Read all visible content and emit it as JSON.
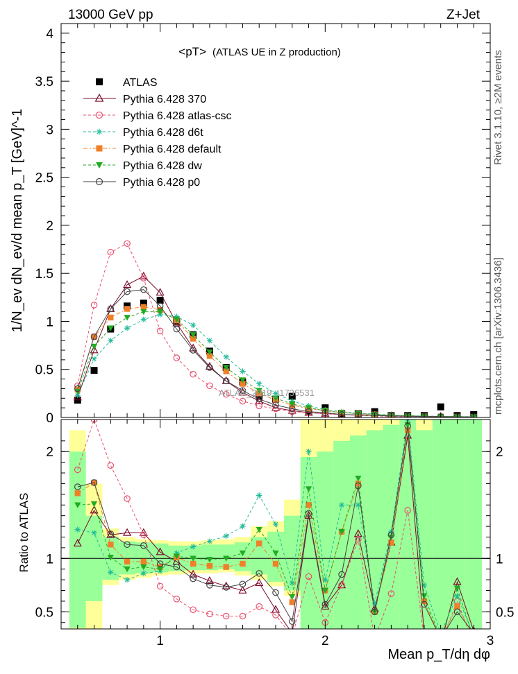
{
  "header": {
    "energy_label": "13000 GeV pp",
    "process_label": "Z+Jet"
  },
  "side_labels": {
    "rivet": "Rivet 3.1.10, ≥2M events",
    "mcplots": "mcplots.cern.ch [arXiv:1306.3436]"
  },
  "watermark": "ATLAS_2019_I1736531",
  "chart_data": [
    {
      "type": "line",
      "panel": "main",
      "title": "<pT>",
      "subtitle": "(ATLAS UE in Z production)",
      "ylabel": "1/N_ev dN_ev/d mean p_T [GeV]^-1",
      "xlim": [
        0.4,
        3.0
      ],
      "ylim": [
        0,
        4.1
      ],
      "yticks": [
        0,
        0.5,
        1,
        1.5,
        2,
        2.5,
        3,
        3.5,
        4
      ],
      "ytick_labels": [
        "0",
        "0.5",
        "1",
        "1.5",
        "2",
        "2.5",
        "3",
        "3.5",
        "4"
      ],
      "legend_position": "top-left",
      "x": [
        0.5,
        0.6,
        0.7,
        0.8,
        0.9,
        1.0,
        1.1,
        1.2,
        1.3,
        1.4,
        1.5,
        1.6,
        1.7,
        1.8,
        1.9,
        2.0,
        2.1,
        2.2,
        2.3,
        2.4,
        2.5,
        2.6,
        2.7,
        2.8,
        2.9
      ],
      "series": [
        {
          "name": "ATLAS",
          "color": "#000000",
          "marker": "square",
          "line": "none",
          "values": [
            0.18,
            0.49,
            0.92,
            1.16,
            1.19,
            1.22,
            1.0,
            0.86,
            0.69,
            0.52,
            0.37,
            0.22,
            0.19,
            0.22,
            0.06,
            0.1,
            0.04,
            0.04,
            0.06,
            0.02,
            0.02,
            0.02,
            0.11,
            0.02,
            0.03
          ]
        },
        {
          "name": "Pythia 6.428 370",
          "color": "#7a0a2a",
          "marker": "triangle",
          "line": "solid",
          "values": [
            0.21,
            0.7,
            1.13,
            1.38,
            1.47,
            1.3,
            0.98,
            0.72,
            0.53,
            0.38,
            0.26,
            0.17,
            0.1,
            0.07,
            0.05,
            0.04,
            0.03,
            0.025,
            0.02,
            0.015,
            0.012,
            0.01,
            0.008,
            0.006,
            0.005
          ]
        },
        {
          "name": "Pythia 6.428 atlas-csc",
          "color": "#e8506e",
          "marker": "circle-open",
          "line": "dashed",
          "values": [
            0.33,
            1.17,
            1.72,
            1.81,
            1.45,
            0.9,
            0.62,
            0.45,
            0.33,
            0.24,
            0.17,
            0.12,
            0.09,
            0.06,
            0.05,
            0.04,
            0.03,
            0.02,
            0.015,
            0.01,
            0.01,
            0.008,
            0.006,
            0.005,
            0.004
          ]
        },
        {
          "name": "Pythia 6.428 d6t",
          "color": "#22bb99",
          "marker": "star",
          "line": "dashed",
          "values": [
            0.23,
            0.61,
            0.8,
            0.93,
            1.02,
            1.07,
            1.05,
            0.96,
            0.8,
            0.63,
            0.48,
            0.35,
            0.25,
            0.17,
            0.12,
            0.08,
            0.06,
            0.045,
            0.035,
            0.025,
            0.02,
            0.015,
            0.012,
            0.01,
            0.008
          ]
        },
        {
          "name": "Pythia 6.428 default",
          "color": "#f07f2a",
          "marker": "square",
          "line": "dashdot",
          "values": [
            0.29,
            0.84,
            1.04,
            1.13,
            1.15,
            1.12,
            1.01,
            0.82,
            0.64,
            0.48,
            0.35,
            0.25,
            0.18,
            0.13,
            0.09,
            0.07,
            0.05,
            0.04,
            0.03,
            0.02,
            0.015,
            0.012,
            0.01,
            0.008,
            0.006
          ]
        },
        {
          "name": "Pythia 6.428 dw",
          "color": "#22aa22",
          "marker": "triangle-down",
          "line": "dashed",
          "values": [
            0.27,
            0.74,
            0.93,
            1.04,
            1.1,
            1.1,
            1.02,
            0.86,
            0.68,
            0.52,
            0.39,
            0.28,
            0.2,
            0.14,
            0.1,
            0.07,
            0.05,
            0.04,
            0.03,
            0.022,
            0.017,
            0.013,
            0.01,
            0.008,
            0.006
          ]
        },
        {
          "name": "Pythia 6.428 p0",
          "color": "#444444",
          "marker": "circle-open",
          "line": "solid",
          "values": [
            0.3,
            0.84,
            1.13,
            1.31,
            1.33,
            1.16,
            0.92,
            0.7,
            0.52,
            0.38,
            0.28,
            0.19,
            0.13,
            0.09,
            0.06,
            0.05,
            0.03,
            0.025,
            0.02,
            0.015,
            0.012,
            0.01,
            0.008,
            0.006,
            0.005
          ]
        }
      ]
    },
    {
      "type": "line",
      "panel": "ratio",
      "xlabel": "Mean p_T/dη dφ",
      "ylabel": "Ratio to ATLAS",
      "xlim": [
        0.4,
        3.0
      ],
      "ylim": [
        0.34,
        2.3
      ],
      "xticks": [
        1,
        2,
        3
      ],
      "xtick_labels": [
        "1",
        "2",
        "3"
      ],
      "yticks": [
        0.5,
        1,
        2
      ],
      "ytick_labels": [
        "0.5",
        "1",
        "2"
      ],
      "reference_line": 1,
      "bands": {
        "x_edges": [
          0.45,
          0.55,
          0.65,
          0.75,
          0.85,
          0.95,
          1.05,
          1.15,
          1.25,
          1.35,
          1.45,
          1.55,
          1.65,
          1.75,
          1.85,
          1.95,
          2.05,
          2.15,
          2.25,
          2.35,
          2.45,
          2.55,
          2.65,
          2.75,
          2.85,
          2.95
        ],
        "green_lo": [
          0.35,
          0.6,
          0.8,
          0.85,
          0.86,
          0.87,
          0.88,
          0.89,
          0.89,
          0.9,
          0.88,
          0.85,
          0.78,
          0.7,
          0.34,
          0.34,
          0.34,
          0.34,
          0.34,
          0.34,
          0.34,
          0.34,
          0.34,
          0.34,
          0.34
        ],
        "green_hi": [
          2.0,
          1.4,
          1.2,
          1.16,
          1.15,
          1.14,
          1.12,
          1.12,
          1.13,
          1.13,
          1.15,
          1.2,
          1.25,
          1.4,
          1.95,
          2.0,
          2.1,
          2.15,
          2.2,
          2.25,
          2.3,
          2.2,
          2.3,
          2.3,
          2.3
        ],
        "yellow_lo": [
          0.34,
          0.34,
          0.75,
          0.8,
          0.82,
          0.84,
          0.85,
          0.86,
          0.86,
          0.87,
          0.84,
          0.8,
          0.74,
          0.65,
          0.34,
          0.34,
          0.34,
          0.34,
          0.34,
          0.34,
          0.34,
          0.34,
          0.34,
          0.34,
          0.34
        ],
        "yellow_hi": [
          2.2,
          1.7,
          1.28,
          1.2,
          1.18,
          1.17,
          1.16,
          1.16,
          1.17,
          1.18,
          1.2,
          1.3,
          1.35,
          1.55,
          2.3,
          2.3,
          2.3,
          2.3,
          2.3,
          2.3,
          2.3,
          2.3,
          2.1,
          2.3,
          2.0
        ]
      },
      "x": [
        0.5,
        0.6,
        0.7,
        0.8,
        0.9,
        1.0,
        1.1,
        1.2,
        1.3,
        1.4,
        1.5,
        1.6,
        1.7,
        1.8,
        1.9,
        2.0,
        2.1,
        2.2,
        2.3,
        2.4,
        2.5,
        2.6,
        2.7,
        2.8,
        2.9
      ],
      "series": [
        {
          "name": "Pythia 6.428 370",
          "color": "#7a0a2a",
          "marker": "triangle",
          "line": "solid",
          "values": [
            1.14,
            1.45,
            1.22,
            1.24,
            1.24,
            1.06,
            0.97,
            0.85,
            0.79,
            0.74,
            0.7,
            0.77,
            0.52,
            0.3,
            1.4,
            0.55,
            0.75,
            1.23,
            0.53,
            1.15,
            2.15,
            0.3,
            0.2,
            0.78,
            0.32
          ]
        },
        {
          "name": "Pythia 6.428 atlas-csc",
          "color": "#e8506e",
          "marker": "circle-open",
          "line": "dashed",
          "values": [
            1.83,
            2.3,
            1.87,
            1.56,
            1.22,
            0.74,
            0.62,
            0.52,
            0.48,
            0.46,
            0.46,
            0.55,
            0.47,
            0.27,
            0.83,
            0.4,
            0.75,
            1.18,
            0.25,
            0.67,
            1.45,
            0.25,
            0.2,
            0.6,
            0.2
          ]
        },
        {
          "name": "Pythia 6.428 d6t",
          "color": "#22bb99",
          "marker": "star",
          "line": "dashed",
          "values": [
            1.27,
            1.24,
            0.87,
            0.8,
            0.86,
            0.88,
            1.05,
            1.11,
            1.16,
            1.21,
            1.3,
            1.59,
            1.32,
            0.77,
            2.0,
            0.8,
            1.5,
            1.5,
            0.58,
            1.25,
            2.3,
            0.75,
            0.3,
            0.65,
            0.28
          ]
        },
        {
          "name": "Pythia 6.428 default",
          "color": "#f07f2a",
          "marker": "square",
          "line": "dashdot",
          "values": [
            1.61,
            1.71,
            1.13,
            0.97,
            0.97,
            0.92,
            1.01,
            0.95,
            0.93,
            0.92,
            0.95,
            1.14,
            0.95,
            0.59,
            1.5,
            0.7,
            1.25,
            1.7,
            0.5,
            1.15,
            2.2,
            0.6,
            0.25,
            0.55,
            0.27
          ]
        },
        {
          "name": "Pythia 6.428 dw",
          "color": "#22aa22",
          "marker": "triangle-down",
          "line": "dashed",
          "values": [
            1.5,
            1.51,
            1.01,
            0.9,
            0.92,
            0.9,
            1.02,
            1.0,
            0.99,
            1.0,
            1.05,
            1.27,
            1.05,
            0.64,
            1.65,
            0.7,
            1.25,
            1.75,
            0.5,
            1.2,
            2.25,
            0.65,
            0.25,
            0.72,
            0.25
          ]
        },
        {
          "name": "Pythia 6.428 p0",
          "color": "#444444",
          "marker": "circle-open",
          "line": "solid",
          "values": [
            1.67,
            1.71,
            1.23,
            1.13,
            1.12,
            0.95,
            0.92,
            0.81,
            0.75,
            0.73,
            0.76,
            0.86,
            0.68,
            0.41,
            1.42,
            0.57,
            0.85,
            1.68,
            0.5,
            1.22,
            2.24,
            0.57,
            0.25,
            0.5,
            0.3
          ]
        }
      ]
    }
  ]
}
